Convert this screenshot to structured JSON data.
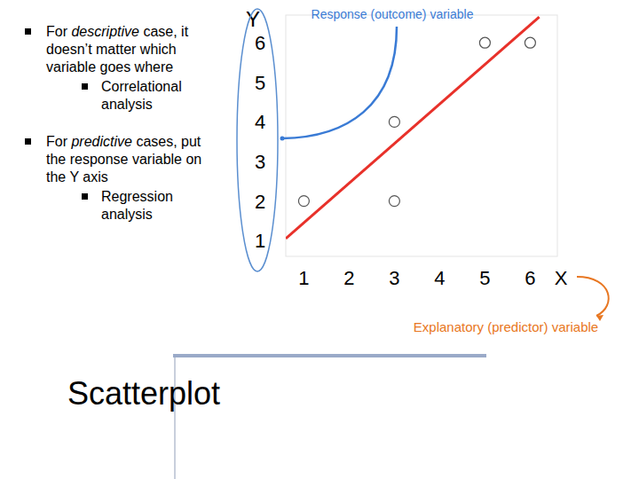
{
  "chart_data": {
    "type": "scatter",
    "title": "Scatterplot",
    "x_label": "X",
    "y_label": "Y",
    "annotations": [
      "Response (outcome) variable",
      "Explanatory (predictor) variable"
    ],
    "series": [
      {
        "type": "scatter",
        "marker": "circle",
        "color": "#555555",
        "x": [
          1,
          3,
          3,
          5,
          6
        ],
        "values": [
          2,
          2,
          4,
          6,
          6
        ]
      },
      {
        "type": "line",
        "line_style": "solid",
        "color": "#e8312a",
        "x": [
          0.6,
          6.2
        ],
        "values": [
          1.05,
          6.65
        ]
      }
    ],
    "xlim": [
      0.6,
      6.6
    ],
    "ylim": [
      0.6,
      6.7
    ],
    "xticks": [
      1,
      2,
      3,
      4,
      5,
      6
    ],
    "yticks": [
      1,
      2,
      3,
      4,
      5,
      6
    ],
    "grid": false
  },
  "bullets": [
    {
      "parts": [
        "For ",
        "descriptive",
        " case, it doesn’t matter which variable goes where"
      ],
      "sub": [
        "Correlational analysis"
      ]
    },
    {
      "parts": [
        "For ",
        "predictive",
        " cases, put the response variable on the Y axis"
      ],
      "sub": [
        "Regression analysis"
      ]
    }
  ]
}
